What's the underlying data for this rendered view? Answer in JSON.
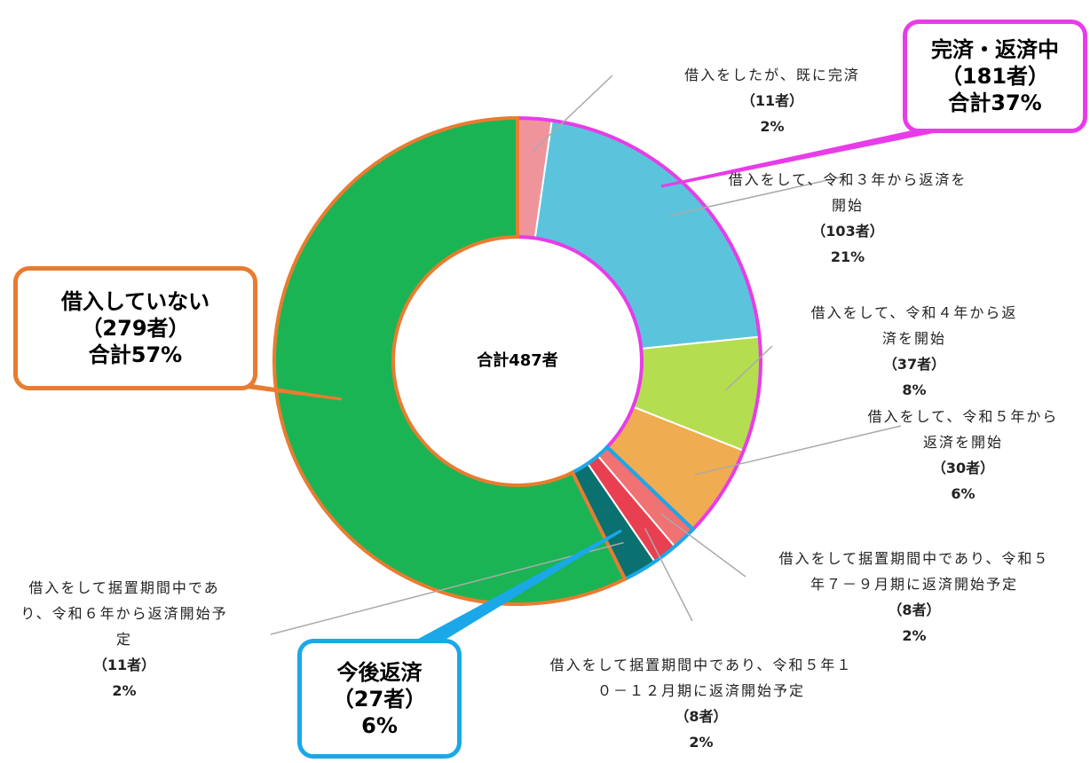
{
  "chart_data": {
    "type": "donut",
    "center_label": "合計487者",
    "categories": [
      "借入をしたが、既に完済",
      "借入をして、令和３年から返済を開始",
      "借入をして、令和４年から返済を開始",
      "借入をして、令和５年から返済を開始",
      "借入をして据置期間中であり、令和５年７－９月期に返済開始予定",
      "借入をして据置期間中であり、令和５年１０－１２月期に返済開始予定",
      "借入をして据置期間中であり、令和６年から返済開始予定",
      null
    ],
    "values": [
      11,
      103,
      37,
      30,
      8,
      8,
      11,
      279
    ],
    "value_labels": [
      "（11者）",
      "（103者）",
      "（37者）",
      "（30者）",
      "（8者）",
      "（8者）",
      "（11者）",
      null
    ],
    "percent_labels": [
      "2%",
      "21%",
      "8%",
      "6%",
      "2%",
      "2%",
      "2%",
      null
    ],
    "colors": [
      "#f0949c",
      "#5bc4dc",
      "#b5dd50",
      "#f0ac50",
      "#f07272",
      "#e84050",
      "#0a7070",
      "#1ab454"
    ],
    "annotations": [
      {
        "lines": [
          "完済・返済中",
          "（181者）",
          "合計37%"
        ],
        "color": "#e83ce8"
      },
      {
        "lines": [
          "借入していない",
          "（279者）",
          "合計57%"
        ],
        "color": "#e87c30"
      },
      {
        "lines": [
          "今後返済",
          "（27者）",
          "6%"
        ],
        "color": "#1aa8e8"
      }
    ]
  }
}
